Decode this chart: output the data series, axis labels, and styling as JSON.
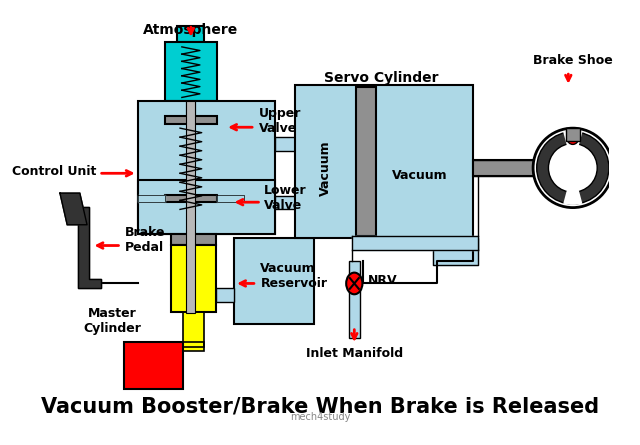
{
  "title": "Vacuum Booster/Brake When Brake is Released",
  "title_fontsize": 15,
  "title_fontweight": "bold",
  "bg_color": "#ffffff",
  "labels": {
    "atmosphere": "Atmosphere",
    "upper_valve": "Upper\nValve",
    "lower_valve": "Lower\nValve",
    "control_unit": "Control Unit",
    "brake_pedal": "Brake\nPedal",
    "master_cylinder": "Master\nCylinder",
    "vacuum_reservoir": "Vacuum\nReservoir",
    "inlet_manifold": "Inlet Manifold",
    "nrv": "NRV",
    "servo_cylinder": "Servo Cylinder",
    "vacuum_left": "Vacuum",
    "vacuum_right": "Vacuum",
    "brake_shoe": "Brake Shoe"
  },
  "colors": {
    "light_blue": "#ADD8E6",
    "cyan": "#00CED1",
    "yellow": "#FFFF00",
    "red": "#FF0000",
    "gray": "#909090",
    "dark_gray": "#333333",
    "black": "#000000",
    "white": "#ffffff",
    "light_gray": "#B8B8B8",
    "pipe_blue": "#B0D8E8"
  }
}
